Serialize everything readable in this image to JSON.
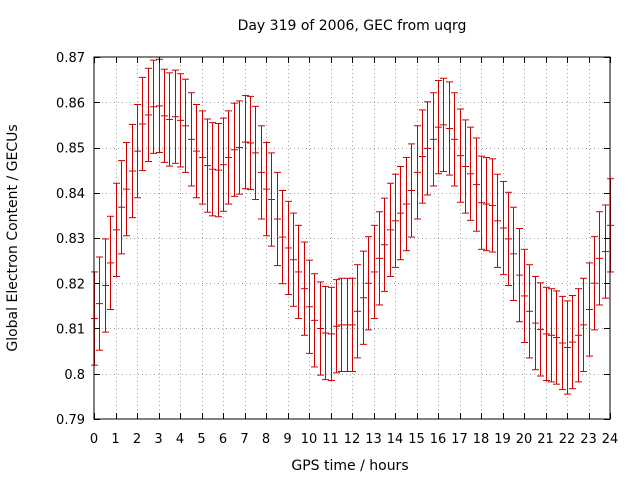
{
  "chart_data": {
    "type": "scatter",
    "title": "Day 319 of 2006, GEC from uqrg",
    "xlabel": "GPS time / hours",
    "ylabel": "Global Electron Content / GECUs",
    "xlim": [
      0,
      24
    ],
    "ylim": [
      0.79,
      0.87
    ],
    "xticks": [
      "0",
      "1",
      "2",
      "3",
      "4",
      "5",
      "6",
      "7",
      "8",
      "9",
      "10",
      "11",
      "12",
      "13",
      "14",
      "15",
      "16",
      "17",
      "18",
      "19",
      "20",
      "21",
      "22",
      "23",
      "24"
    ],
    "yticks": [
      "0.79",
      "0.8",
      "0.81",
      "0.82",
      "0.83",
      "0.84",
      "0.85",
      "0.86",
      "0.87"
    ],
    "grid": true,
    "series": [
      {
        "color": "#cc0000",
        "style": "errorbars",
        "x": [
          0,
          0.25,
          0.5,
          0.75,
          1,
          1.25,
          1.5,
          1.75,
          2,
          2.25,
          2.5,
          2.75,
          3,
          3.25,
          3.5,
          3.75,
          4,
          4.25,
          4.5,
          4.75,
          5,
          5.25,
          5.5,
          5.75,
          6,
          6.25,
          6.5,
          6.75,
          7,
          7.25,
          7.5,
          7.75,
          8,
          8.25,
          8.5,
          8.75,
          9,
          9.25,
          9.5,
          9.75,
          10,
          10.25,
          10.5,
          10.75,
          11,
          11.25,
          11.5,
          11.75,
          12,
          12.25,
          12.5,
          12.75,
          13,
          13.25,
          13.5,
          13.75,
          14,
          14.25,
          14.5,
          14.75,
          15,
          15.25,
          15.5,
          15.75,
          16,
          16.25,
          16.5,
          16.75,
          17,
          17.25,
          17.5,
          17.75,
          18,
          18.25,
          18.5,
          18.75,
          19,
          19.25,
          19.5,
          19.75,
          20,
          20.25,
          20.5,
          20.75,
          21,
          21.25,
          21.5,
          21.75,
          22,
          22.25,
          22.5,
          22.75,
          23,
          23.25,
          23.5,
          23.75,
          24
        ],
        "y": [
          0.8122,
          0.8155,
          0.8195,
          0.8245,
          0.8318,
          0.8368,
          0.8408,
          0.8448,
          0.8492,
          0.8552,
          0.8572,
          0.859,
          0.8592,
          0.857,
          0.8562,
          0.8568,
          0.856,
          0.8548,
          0.8518,
          0.8492,
          0.8478,
          0.846,
          0.8452,
          0.845,
          0.8462,
          0.8478,
          0.8495,
          0.85,
          0.8512,
          0.851,
          0.8488,
          0.8445,
          0.8408,
          0.8385,
          0.8342,
          0.8302,
          0.8278,
          0.8252,
          0.8225,
          0.8188,
          0.8148,
          0.8118,
          0.81,
          0.809,
          0.8088,
          0.8105,
          0.8108,
          0.8108,
          0.8108,
          0.8138,
          0.8168,
          0.82,
          0.8225,
          0.8255,
          0.8285,
          0.8318,
          0.8338,
          0.8355,
          0.8375,
          0.8405,
          0.8445,
          0.848,
          0.8498,
          0.8518,
          0.8545,
          0.855,
          0.8542,
          0.8518,
          0.8482,
          0.8458,
          0.8442,
          0.8418,
          0.8378,
          0.8375,
          0.8372,
          0.8338,
          0.8322,
          0.8298,
          0.8265,
          0.8218,
          0.8172,
          0.8138,
          0.8112,
          0.8098,
          0.8088,
          0.8085,
          0.808,
          0.8068,
          0.8058,
          0.807,
          0.8085,
          0.8108,
          0.8142,
          0.82,
          0.8255,
          0.827,
          0.8328
        ],
        "err": 0.0103
      }
    ]
  }
}
